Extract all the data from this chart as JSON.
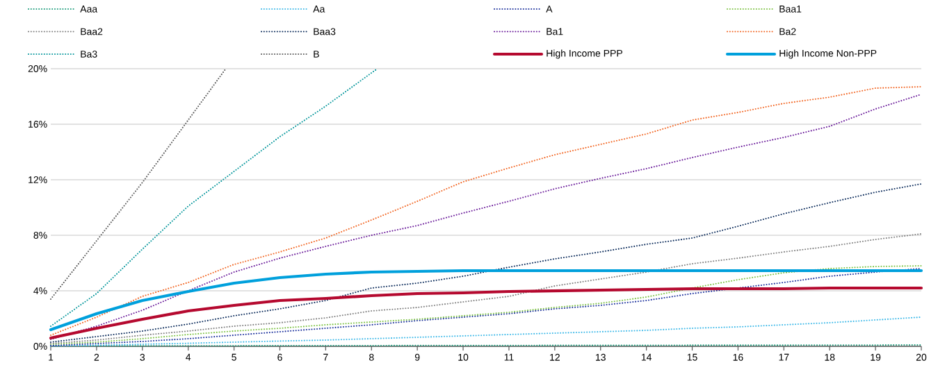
{
  "chart_data": {
    "type": "line",
    "x": [
      1,
      2,
      3,
      4,
      5,
      6,
      7,
      8,
      9,
      10,
      11,
      12,
      13,
      14,
      15,
      16,
      17,
      18,
      19,
      20
    ],
    "xlim": [
      1,
      20
    ],
    "xticks": [
      1,
      2,
      3,
      4,
      5,
      6,
      7,
      8,
      9,
      10,
      11,
      12,
      13,
      14,
      15,
      16,
      17,
      18,
      19,
      20
    ],
    "ylim": [
      0,
      20
    ],
    "yticks": [
      {
        "value": 0,
        "label": "0%"
      },
      {
        "value": 4,
        "label": "4%"
      },
      {
        "value": 8,
        "label": "8%"
      },
      {
        "value": 12,
        "label": "12%"
      },
      {
        "value": 16,
        "label": "16%"
      },
      {
        "value": 20,
        "label": "20%"
      }
    ],
    "grid": "y",
    "legend": "top",
    "series": [
      {
        "name": "Aaa",
        "color": "#1a9b7a",
        "line_style": "dotted",
        "values": [
          0.02,
          0.03,
          0.03,
          0.04,
          0.04,
          0.05,
          0.05,
          0.05,
          0.06,
          0.06,
          0.06,
          0.07,
          0.07,
          0.07,
          0.08,
          0.08,
          0.08,
          0.09,
          0.09,
          0.1
        ]
      },
      {
        "name": "Aa",
        "color": "#3bb8e8",
        "line_style": "dotted",
        "values": [
          0.02,
          0.08,
          0.15,
          0.22,
          0.3,
          0.38,
          0.45,
          0.55,
          0.65,
          0.75,
          0.85,
          0.95,
          1.05,
          1.15,
          1.3,
          1.4,
          1.55,
          1.7,
          1.9,
          2.1
        ]
      },
      {
        "name": "A",
        "color": "#1a2f9c",
        "line_style": "dotted",
        "values": [
          0.05,
          0.2,
          0.35,
          0.55,
          0.8,
          1.05,
          1.3,
          1.55,
          1.85,
          2.1,
          2.35,
          2.7,
          2.95,
          3.3,
          3.8,
          4.2,
          4.6,
          5.05,
          5.35,
          5.6
        ]
      },
      {
        "name": "Baa1",
        "color": "#7cc242",
        "line_style": "dotted",
        "values": [
          0.15,
          0.3,
          0.55,
          0.85,
          1.1,
          1.3,
          1.55,
          1.75,
          1.95,
          2.2,
          2.45,
          2.8,
          3.1,
          3.55,
          4.2,
          4.8,
          5.3,
          5.6,
          5.75,
          5.8
        ]
      },
      {
        "name": "Baa2",
        "color": "#808080",
        "line_style": "dotted",
        "values": [
          0.2,
          0.45,
          0.8,
          1.1,
          1.45,
          1.7,
          2.05,
          2.55,
          2.8,
          3.2,
          3.6,
          4.35,
          4.85,
          5.35,
          5.95,
          6.35,
          6.8,
          7.2,
          7.7,
          8.1
        ]
      },
      {
        "name": "Baa3",
        "color": "#0b2b5b",
        "line_style": "dotted",
        "values": [
          0.3,
          0.7,
          1.1,
          1.6,
          2.2,
          2.7,
          3.3,
          4.2,
          4.55,
          5.05,
          5.7,
          6.3,
          6.8,
          7.35,
          7.8,
          8.65,
          9.55,
          10.35,
          11.1,
          11.7
        ]
      },
      {
        "name": "Ba1",
        "color": "#6a1b9a",
        "line_style": "dotted",
        "values": [
          0.5,
          1.45,
          2.6,
          4.0,
          5.35,
          6.35,
          7.2,
          8.0,
          8.7,
          9.6,
          10.45,
          11.35,
          12.1,
          12.8,
          13.6,
          14.35,
          15.05,
          15.85,
          17.1,
          18.15
        ]
      },
      {
        "name": "Ba2",
        "color": "#f26522",
        "line_style": "dotted",
        "values": [
          0.8,
          2.1,
          3.6,
          4.6,
          5.9,
          6.8,
          7.8,
          9.1,
          10.45,
          11.85,
          12.85,
          13.8,
          14.55,
          15.3,
          16.3,
          16.85,
          17.5,
          17.95,
          18.6,
          18.7
        ]
      },
      {
        "name": "Ba3",
        "color": "#00959a",
        "line_style": "dotted",
        "x": [
          1,
          2,
          3,
          4,
          5,
          6,
          7,
          8,
          8.13
        ],
        "values": [
          1.45,
          3.8,
          7.0,
          10.1,
          12.6,
          15.1,
          17.3,
          19.7,
          20
        ]
      },
      {
        "name": "B",
        "color": "#595959",
        "line_style": "dotted",
        "x": [
          1,
          2,
          3,
          4,
          4.82
        ],
        "values": [
          3.4,
          7.6,
          11.8,
          16.3,
          20
        ]
      },
      {
        "name": "High Income PPP",
        "color": "#b5092f",
        "line_style": "solid",
        "values": [
          0.6,
          1.3,
          1.95,
          2.55,
          2.95,
          3.3,
          3.45,
          3.65,
          3.8,
          3.85,
          3.95,
          4.0,
          4.05,
          4.1,
          4.15,
          4.15,
          4.15,
          4.2,
          4.2,
          4.2
        ]
      },
      {
        "name": "High Income Non-PPP",
        "color": "#00a0dc",
        "line_style": "solid",
        "values": [
          1.2,
          2.35,
          3.3,
          3.95,
          4.55,
          4.95,
          5.2,
          5.35,
          5.4,
          5.45,
          5.45,
          5.45,
          5.45,
          5.45,
          5.45,
          5.45,
          5.45,
          5.45,
          5.45,
          5.45
        ]
      }
    ]
  }
}
